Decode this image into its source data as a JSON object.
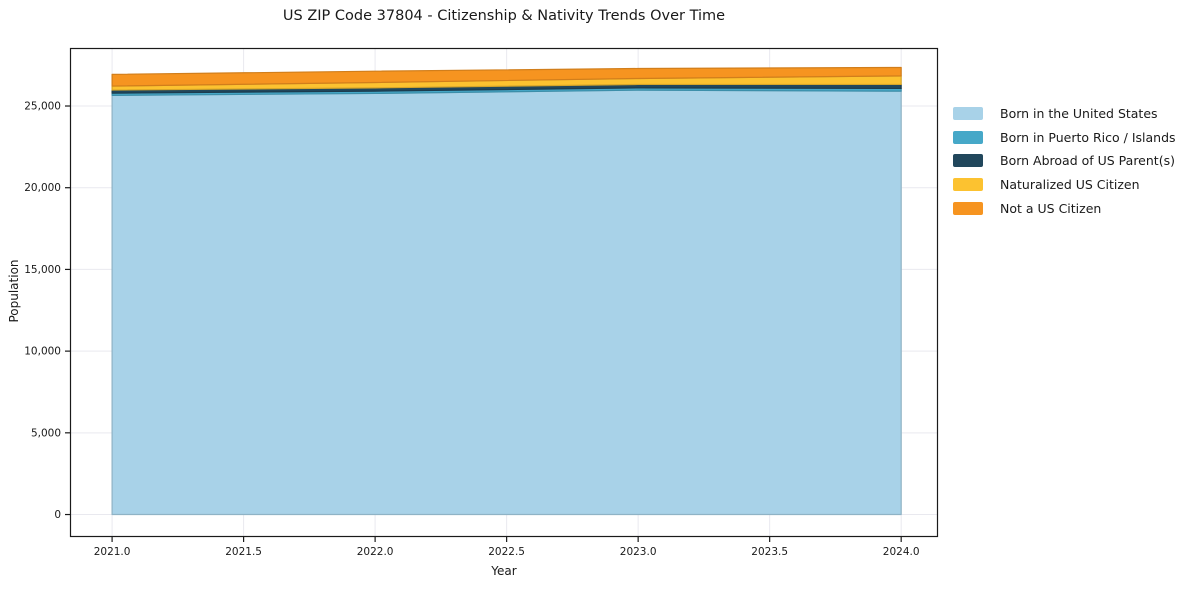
{
  "chart_data": {
    "type": "area",
    "stacked": true,
    "title": "US ZIP Code 37804 - Citizenship & Nativity Trends Over Time",
    "xlabel": "Year",
    "ylabel": "Population",
    "x": [
      2021,
      2022,
      2023,
      2024
    ],
    "series": [
      {
        "name": "Born in the United States",
        "color": "#A8D2E8",
        "values": [
          25650,
          25770,
          25970,
          25910
        ]
      },
      {
        "name": "Born in Puerto Rico / Islands",
        "color": "#46A8C8",
        "values": [
          140,
          140,
          140,
          165
        ]
      },
      {
        "name": "Born Abroad of US Parent(s)",
        "color": "#21475C",
        "values": [
          185,
          200,
          210,
          245
        ]
      },
      {
        "name": "Naturalized US Citizen",
        "color": "#FCC230",
        "values": [
          245,
          330,
          365,
          525
        ]
      },
      {
        "name": "Not a US Citizen",
        "color": "#F69420",
        "values": [
          715,
          690,
          610,
          515
        ]
      }
    ],
    "x_ticks": [
      2021.0,
      2021.5,
      2022.0,
      2022.5,
      2023.0,
      2023.5,
      2024.0
    ],
    "y_ticks": [
      0,
      5000,
      10000,
      15000,
      20000,
      25000
    ],
    "xlim": [
      2020.84,
      2024.14
    ],
    "ylim": [
      -1375,
      28550
    ],
    "grid": true,
    "legend_position": "right-outside",
    "colors": {
      "grid": "#e9e9ef",
      "spine": "#1a1a1a",
      "tick": "#1a1a1a",
      "background": "#ffffff"
    }
  }
}
